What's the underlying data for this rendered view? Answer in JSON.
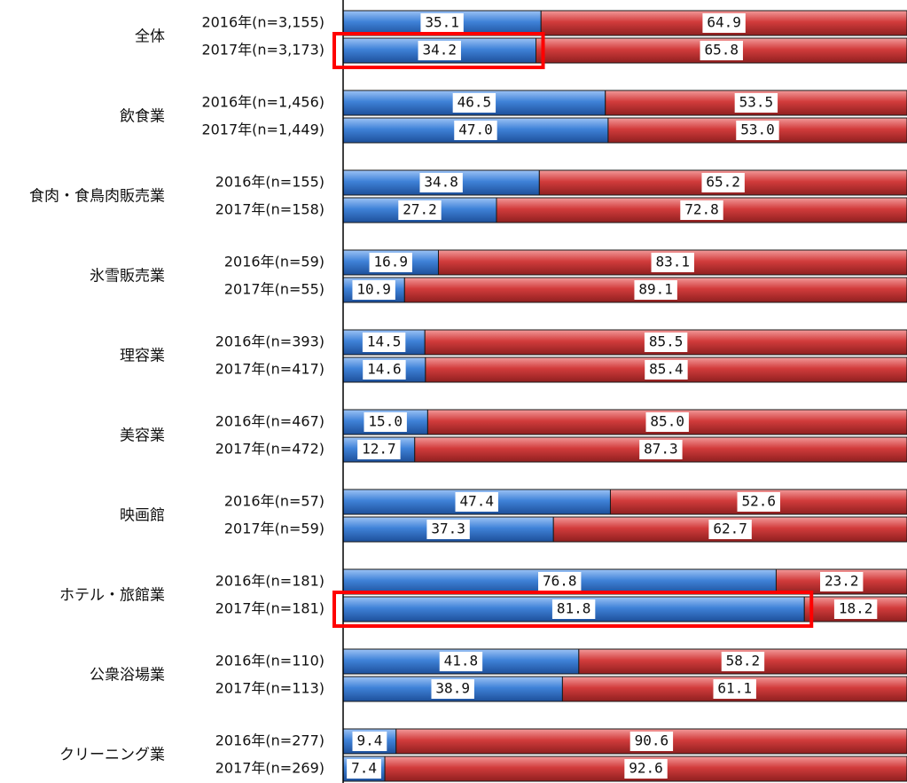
{
  "chart_data": {
    "type": "bar",
    "orientation": "horizontal",
    "stacked": "100%",
    "xlim": [
      0,
      100
    ],
    "grid": false,
    "legend": "none",
    "colors": {
      "series_1": "#3a7bd5",
      "series_2": "#d03a3a",
      "highlight": "#ff0000"
    },
    "groups": [
      {
        "category": "全体",
        "rows": [
          {
            "label": "2016年(n=3,155)",
            "values": [
              35.1,
              64.9
            ],
            "labels": [
              "35.1",
              "64.9"
            ]
          },
          {
            "label": "2017年(n=3,173)",
            "values": [
              34.2,
              65.8
            ],
            "labels": [
              "34.2",
              "65.8"
            ],
            "highlighted_segment": 0
          }
        ]
      },
      {
        "category": "飲食業",
        "rows": [
          {
            "label": "2016年(n=1,456)",
            "values": [
              46.5,
              53.5
            ],
            "labels": [
              "46.5",
              "53.5"
            ]
          },
          {
            "label": "2017年(n=1,449)",
            "values": [
              47.0,
              53.0
            ],
            "labels": [
              "47.0",
              "53.0"
            ]
          }
        ]
      },
      {
        "category": "食肉・食鳥肉販売業",
        "rows": [
          {
            "label": "2016年(n=155)",
            "values": [
              34.8,
              65.2
            ],
            "labels": [
              "34.8",
              "65.2"
            ]
          },
          {
            "label": "2017年(n=158)",
            "values": [
              27.2,
              72.8
            ],
            "labels": [
              "27.2",
              "72.8"
            ]
          }
        ]
      },
      {
        "category": "氷雪販売業",
        "rows": [
          {
            "label": "2016年(n=59)",
            "values": [
              16.9,
              83.1
            ],
            "labels": [
              "16.9",
              "83.1"
            ]
          },
          {
            "label": "2017年(n=55)",
            "values": [
              10.9,
              89.1
            ],
            "labels": [
              "10.9",
              "89.1"
            ]
          }
        ]
      },
      {
        "category": "理容業",
        "rows": [
          {
            "label": "2016年(n=393)",
            "values": [
              14.5,
              85.5
            ],
            "labels": [
              "14.5",
              "85.5"
            ]
          },
          {
            "label": "2017年(n=417)",
            "values": [
              14.6,
              85.4
            ],
            "labels": [
              "14.6",
              "85.4"
            ]
          }
        ]
      },
      {
        "category": "美容業",
        "rows": [
          {
            "label": "2016年(n=467)",
            "values": [
              15.0,
              85.0
            ],
            "labels": [
              "15.0",
              "85.0"
            ]
          },
          {
            "label": "2017年(n=472)",
            "values": [
              12.7,
              87.3
            ],
            "labels": [
              "12.7",
              "87.3"
            ]
          }
        ]
      },
      {
        "category": "映画館",
        "rows": [
          {
            "label": "2016年(n=57)",
            "values": [
              47.4,
              52.6
            ],
            "labels": [
              "47.4",
              "52.6"
            ]
          },
          {
            "label": "2017年(n=59)",
            "values": [
              37.3,
              62.7
            ],
            "labels": [
              "37.3",
              "62.7"
            ]
          }
        ]
      },
      {
        "category": "ホテル・旅館業",
        "rows": [
          {
            "label": "2016年(n=181)",
            "values": [
              76.8,
              23.2
            ],
            "labels": [
              "76.8",
              "23.2"
            ]
          },
          {
            "label": "2017年(n=181)",
            "values": [
              81.8,
              18.2
            ],
            "labels": [
              "81.8",
              "18.2"
            ],
            "highlighted_segment": 0
          }
        ]
      },
      {
        "category": "公衆浴場業",
        "rows": [
          {
            "label": "2016年(n=110)",
            "values": [
              41.8,
              58.2
            ],
            "labels": [
              "41.8",
              "58.2"
            ]
          },
          {
            "label": "2017年(n=113)",
            "values": [
              38.9,
              61.1
            ],
            "labels": [
              "38.9",
              "61.1"
            ]
          }
        ]
      },
      {
        "category": "クリーニング業",
        "rows": [
          {
            "label": "2016年(n=277)",
            "values": [
              9.4,
              90.6
            ],
            "labels": [
              "9.4",
              "90.6"
            ]
          },
          {
            "label": "2017年(n=269)",
            "values": [
              7.4,
              92.6
            ],
            "labels": [
              "7.4",
              "92.6"
            ]
          }
        ]
      }
    ]
  }
}
